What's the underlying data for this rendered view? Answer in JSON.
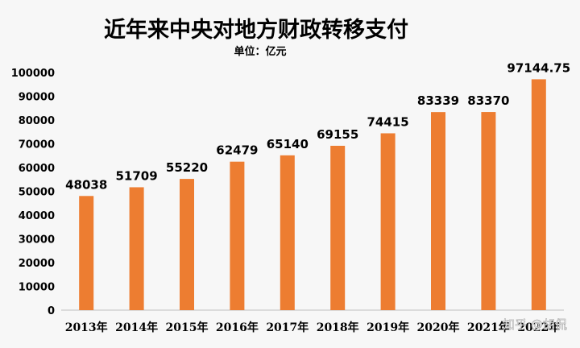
{
  "chart_data": {
    "type": "bar",
    "title": "近年来中央对地方财政转移支付",
    "subtitle": "单位：亿元",
    "categories": [
      "2013年",
      "2014年",
      "2015年",
      "2016年",
      "2017年",
      "2018年",
      "2019年",
      "2020年",
      "2021年",
      "2022年"
    ],
    "values": [
      48038,
      51709,
      55220,
      62479,
      65140,
      69155,
      74415,
      83339,
      83370,
      97144.75
    ],
    "data_labels": [
      "48038",
      "51709",
      "55220",
      "62479",
      "65140",
      "69155",
      "74415",
      "83339",
      "83370",
      "97144.75"
    ],
    "xlabel": "",
    "ylabel": "",
    "ylim": [
      0,
      100000
    ],
    "yticks": [
      "0",
      "10000",
      "20000",
      "30000",
      "40000",
      "50000",
      "60000",
      "70000",
      "80000",
      "90000",
      "100000"
    ],
    "grid": false,
    "legend": "none",
    "bar_color": "#ed7d31"
  },
  "watermark": "知乎 @胡侃"
}
